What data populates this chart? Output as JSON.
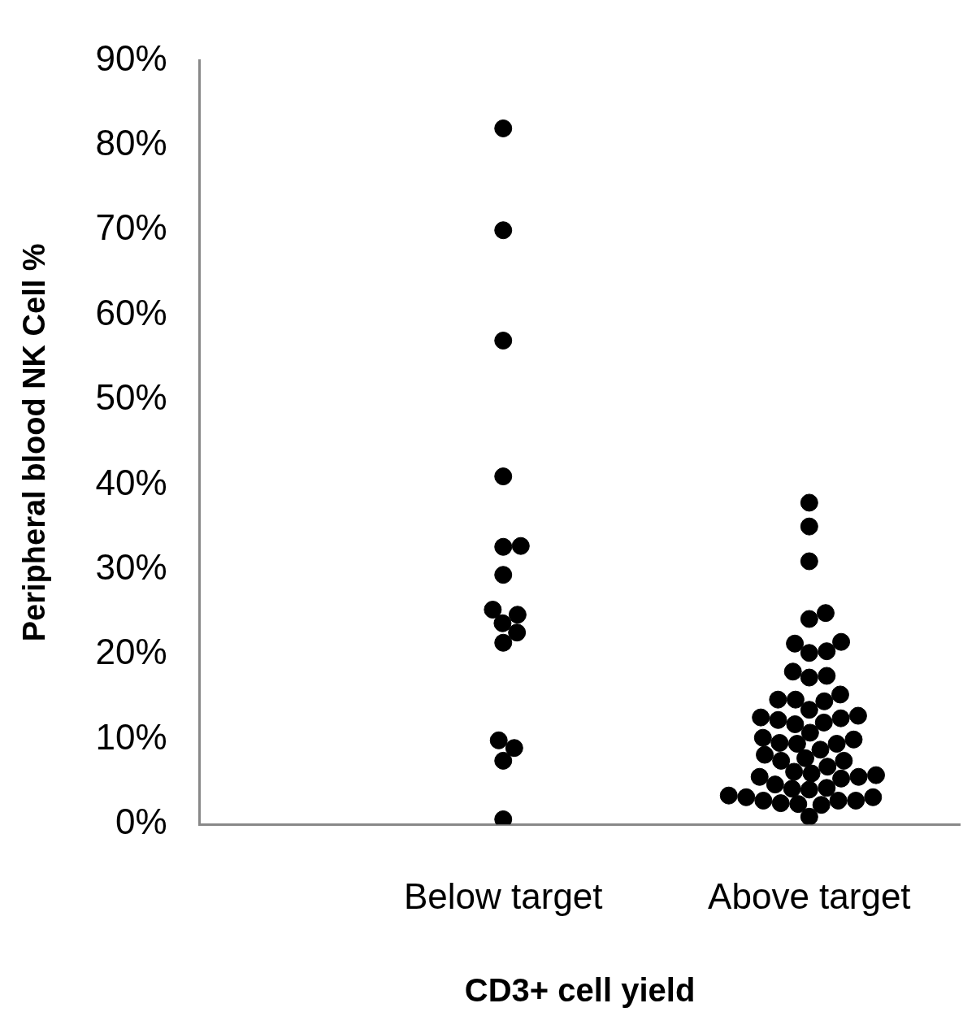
{
  "chart_data": {
    "type": "scatter",
    "xlabel": "CD3+ cell yield",
    "ylabel": "Peripheral blood NK Cell %",
    "categories": [
      "Below target",
      "Above target"
    ],
    "series": [
      {
        "color": "#000000",
        "x": [
          "Below target",
          "Below target",
          "Below target",
          "Below target",
          "Below target",
          "Below target",
          "Below target",
          "Below target",
          "Below target",
          "Below target",
          "Below target",
          "Below target",
          "Below target",
          "Below target",
          "Below target",
          "Below target",
          "Above target",
          "Above target",
          "Above target",
          "Above target",
          "Above target",
          "Above target",
          "Above target",
          "Above target",
          "Above target",
          "Above target",
          "Above target",
          "Above target",
          "Above target",
          "Above target",
          "Above target",
          "Above target",
          "Above target",
          "Above target",
          "Above target",
          "Above target",
          "Above target",
          "Above target",
          "Above target",
          "Above target",
          "Above target",
          "Above target",
          "Above target",
          "Above target",
          "Above target",
          "Above target",
          "Above target",
          "Above target",
          "Above target",
          "Above target",
          "Above target",
          "Above target",
          "Above target",
          "Above target",
          "Above target",
          "Above target",
          "Above target",
          "Above target",
          "Above target",
          "Above target",
          "Above target",
          "Above target",
          "Above target",
          "Above target",
          "Above target",
          "Above target",
          "Above target",
          "Above target",
          "Above target",
          "Above target",
          "Above target"
        ],
        "values": [
          82,
          70,
          57,
          41,
          32.7,
          32.8,
          29.4,
          25.3,
          24.7,
          23.7,
          22.6,
          21.4,
          9.9,
          9.0,
          7.5,
          0.6,
          37.9,
          35.1,
          31.0,
          24.9,
          24.2,
          21.5,
          21.3,
          20.4,
          20.2,
          18.0,
          17.5,
          17.3,
          15.3,
          14.5,
          14.7,
          14.7,
          13.5,
          12.8,
          12.6,
          12.5,
          12.3,
          12.0,
          11.8,
          10.8,
          10.2,
          10.0,
          9.6,
          9.5,
          9.5,
          8.8,
          8.2,
          7.8,
          7.5,
          7.5,
          6.8,
          6.2,
          6.0,
          5.8,
          5.6,
          5.6,
          5.4,
          4.7,
          4.3,
          4.2,
          4.1,
          3.4,
          3.2,
          3.2,
          2.8,
          2.8,
          2.8,
          2.5,
          2.4,
          2.3,
          0.9
        ]
      }
    ],
    "ylim": [
      0,
      90
    ],
    "yticks": [
      {
        "value": 0,
        "label": "0%"
      },
      {
        "value": 10,
        "label": "10%"
      },
      {
        "value": 20,
        "label": "20%"
      },
      {
        "value": 30,
        "label": "30%"
      },
      {
        "value": 40,
        "label": "40%"
      },
      {
        "value": 50,
        "label": "50%"
      },
      {
        "value": 60,
        "label": "60%"
      },
      {
        "value": 70,
        "label": "70%"
      },
      {
        "value": 80,
        "label": "80%"
      },
      {
        "value": 90,
        "label": "90%"
      }
    ],
    "grid": false,
    "legend": false,
    "marker": "circle"
  }
}
